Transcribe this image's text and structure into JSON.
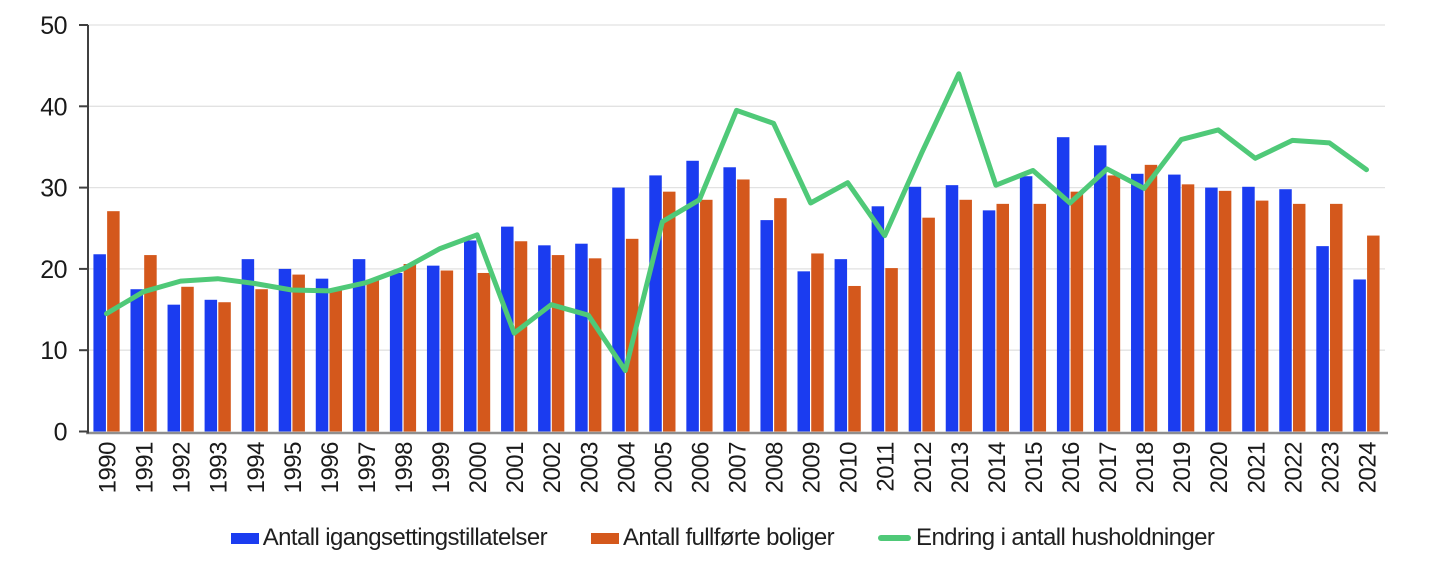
{
  "colors": {
    "blue_bar": "#1b3cf0",
    "orange_bar": "#d4581c",
    "green_line": "#4fc978",
    "grid": "#e2e2e2",
    "axis_y": "#404040",
    "axis_x": "#8f8f8f",
    "text": "#1a1a1a"
  },
  "chart_data": {
    "type": "bar",
    "title": "",
    "xlabel": "",
    "ylabel": "",
    "ylim": [
      0,
      50
    ],
    "yticks": [
      0,
      10,
      20,
      30,
      40,
      50
    ],
    "grid": true,
    "legend_position": "bottom",
    "categories": [
      "1990",
      "1991",
      "1992",
      "1993",
      "1994",
      "1995",
      "1996",
      "1997",
      "1998",
      "1999",
      "2000",
      "2001",
      "2002",
      "2003",
      "2004",
      "2005",
      "2006",
      "2007",
      "2008",
      "2009",
      "2010",
      "2011",
      "2012",
      "2013",
      "2014",
      "2015",
      "2016",
      "2017",
      "2018",
      "2019",
      "2020",
      "2021",
      "2022",
      "2023",
      "2024"
    ],
    "series": [
      {
        "name": "Antall igangsettingstillatelser",
        "type": "bar",
        "color": "#1b3cf0",
        "values": [
          21.8,
          17.5,
          15.6,
          16.2,
          21.2,
          20.0,
          18.8,
          21.2,
          19.5,
          20.4,
          23.5,
          25.2,
          22.9,
          23.1,
          30.0,
          31.5,
          33.3,
          32.5,
          26.0,
          19.7,
          21.2,
          27.7,
          30.1,
          30.3,
          27.2,
          31.4,
          36.2,
          35.2,
          31.7,
          31.6,
          30.0,
          30.1,
          29.8,
          22.8,
          18.7
        ]
      },
      {
        "name": "Antall fullførte boliger",
        "type": "bar",
        "color": "#d4581c",
        "values": [
          27.1,
          21.7,
          17.8,
          15.9,
          17.5,
          19.3,
          17.5,
          18.7,
          20.6,
          19.8,
          19.5,
          23.4,
          21.7,
          21.3,
          23.7,
          29.5,
          28.5,
          31.0,
          28.7,
          21.9,
          17.9,
          20.1,
          26.3,
          28.5,
          28.0,
          28.0,
          29.5,
          31.5,
          32.8,
          30.4,
          29.6,
          28.4,
          28.0,
          28.0,
          24.1
        ]
      },
      {
        "name": "Endring i antall husholdninger",
        "type": "line",
        "color": "#4fc978",
        "values": [
          14.5,
          17.2,
          18.5,
          18.8,
          18.2,
          17.4,
          17.3,
          18.3,
          20.0,
          22.5,
          24.2,
          12.1,
          15.6,
          14.3,
          7.5,
          25.8,
          28.5,
          39.5,
          37.9,
          28.1,
          30.6,
          24.1,
          34.3,
          44.0,
          30.3,
          32.1,
          28.1,
          32.3,
          29.9,
          35.9,
          37.1,
          33.6,
          35.8,
          35.5,
          32.2
        ]
      }
    ]
  }
}
